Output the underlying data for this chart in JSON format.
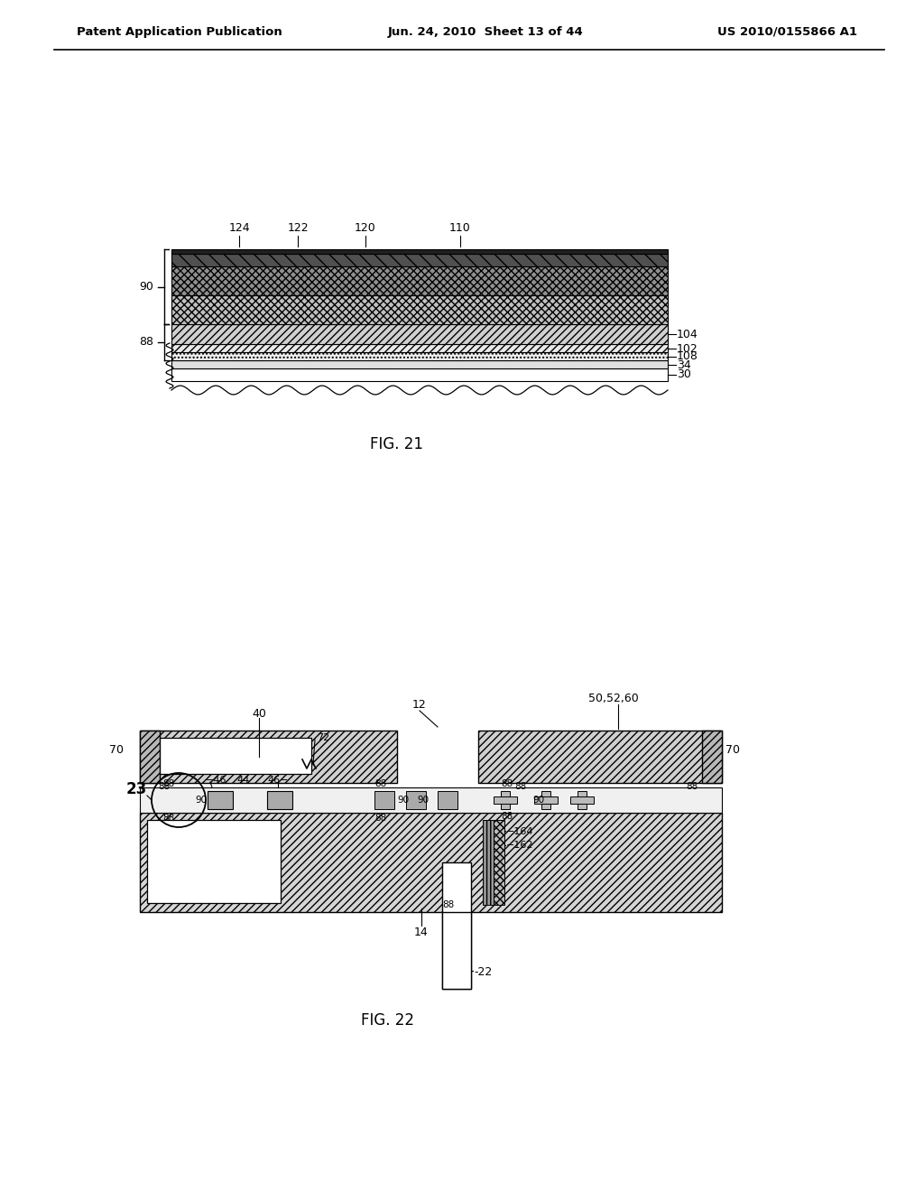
{
  "background_color": "#ffffff",
  "text_color": "#000000",
  "header_left": "Patent Application Publication",
  "header_center": "Jun. 24, 2010  Sheet 13 of 44",
  "header_right": "US 2010/0155866 A1",
  "fig21_caption": "FIG. 21",
  "fig22_caption": "FIG. 22"
}
